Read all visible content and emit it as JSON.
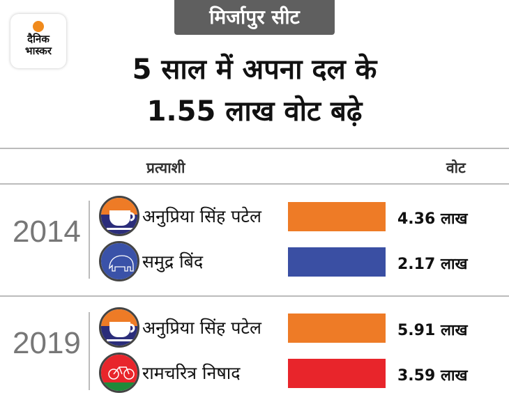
{
  "brand": {
    "line1": "दैनिक",
    "line2": "भास्कर"
  },
  "seat_label": "मिर्जापुर सीट",
  "title": {
    "line1": "5 साल में अपना दल के",
    "line2": "1.55 लाख वोट बढ़े"
  },
  "headers": {
    "candidate": "प्रत्याशी",
    "votes": "वोट"
  },
  "colors": {
    "apna_dal": "#ee7b26",
    "bsp": "#3a4fa3",
    "sp": "#e8252b"
  },
  "chart_data": {
    "type": "bar",
    "title": "5 साल में अपना दल के 1.55 लाख वोट बढ़े",
    "groups": [
      {
        "year": "2014",
        "rows": [
          {
            "candidate": "अनुप्रिया सिंह पटेल",
            "symbol": "cup-saucer",
            "value": 4.36,
            "label": "4.36 लाख",
            "color": "#ee7b26"
          },
          {
            "candidate": "समुद्र बिंद",
            "symbol": "elephant",
            "value": 2.17,
            "label": "2.17 लाख",
            "color": "#3a4fa3"
          }
        ]
      },
      {
        "year": "2019",
        "rows": [
          {
            "candidate": "अनुप्रिया सिंह पटेल",
            "symbol": "cup-saucer",
            "value": 5.91,
            "label": "5.91 लाख",
            "color": "#ee7b26"
          },
          {
            "candidate": "रामचरित्र निषाद",
            "symbol": "bicycle",
            "value": 3.59,
            "label": "3.59 लाख",
            "color": "#e8252b"
          }
        ]
      }
    ],
    "unit": "लाख"
  }
}
